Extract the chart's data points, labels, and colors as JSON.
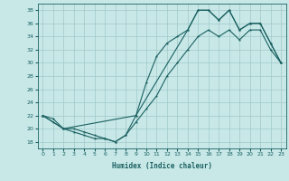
{
  "xlabel": "Humidex (Indice chaleur)",
  "background_color": "#c8e8e8",
  "grid_color": "#a0c8c8",
  "line_color": "#1a6060",
  "xlim": [
    -0.5,
    23.5
  ],
  "ylim": [
    17,
    39
  ],
  "yticks": [
    18,
    20,
    22,
    24,
    26,
    28,
    30,
    32,
    34,
    36,
    38
  ],
  "xticks": [
    0,
    1,
    2,
    3,
    4,
    5,
    6,
    7,
    8,
    9,
    10,
    11,
    12,
    13,
    14,
    15,
    16,
    17,
    18,
    19,
    20,
    21,
    22,
    23
  ],
  "line1_x": [
    0,
    1,
    2,
    3,
    4,
    5,
    6,
    7,
    8,
    9,
    10,
    11,
    12,
    13,
    14,
    15,
    16,
    17,
    18,
    19,
    20,
    21,
    22,
    23
  ],
  "line1_y": [
    22,
    21,
    20,
    19.5,
    19,
    18.5,
    18.5,
    18,
    19,
    22,
    27,
    31,
    33,
    34,
    35,
    38,
    38,
    36.5,
    38,
    35,
    36,
    36,
    33,
    30
  ],
  "line2_x": [
    0,
    1,
    2,
    3,
    4,
    5,
    6,
    7,
    8,
    9,
    10,
    11,
    12,
    13,
    14,
    15,
    16,
    17,
    18,
    19,
    20,
    21,
    22,
    23
  ],
  "line2_y": [
    22,
    21.5,
    20,
    20,
    19.5,
    19,
    18.5,
    18,
    19,
    21,
    23,
    25,
    28,
    30,
    32,
    34,
    35,
    34,
    35,
    33.5,
    35,
    35,
    32,
    30
  ],
  "line3_x": [
    0,
    2,
    9,
    14,
    15,
    16,
    17,
    18,
    19,
    20,
    21,
    22,
    23
  ],
  "line3_y": [
    22,
    20,
    22,
    35,
    38,
    38,
    36.5,
    38,
    35,
    36,
    36,
    33,
    30
  ]
}
